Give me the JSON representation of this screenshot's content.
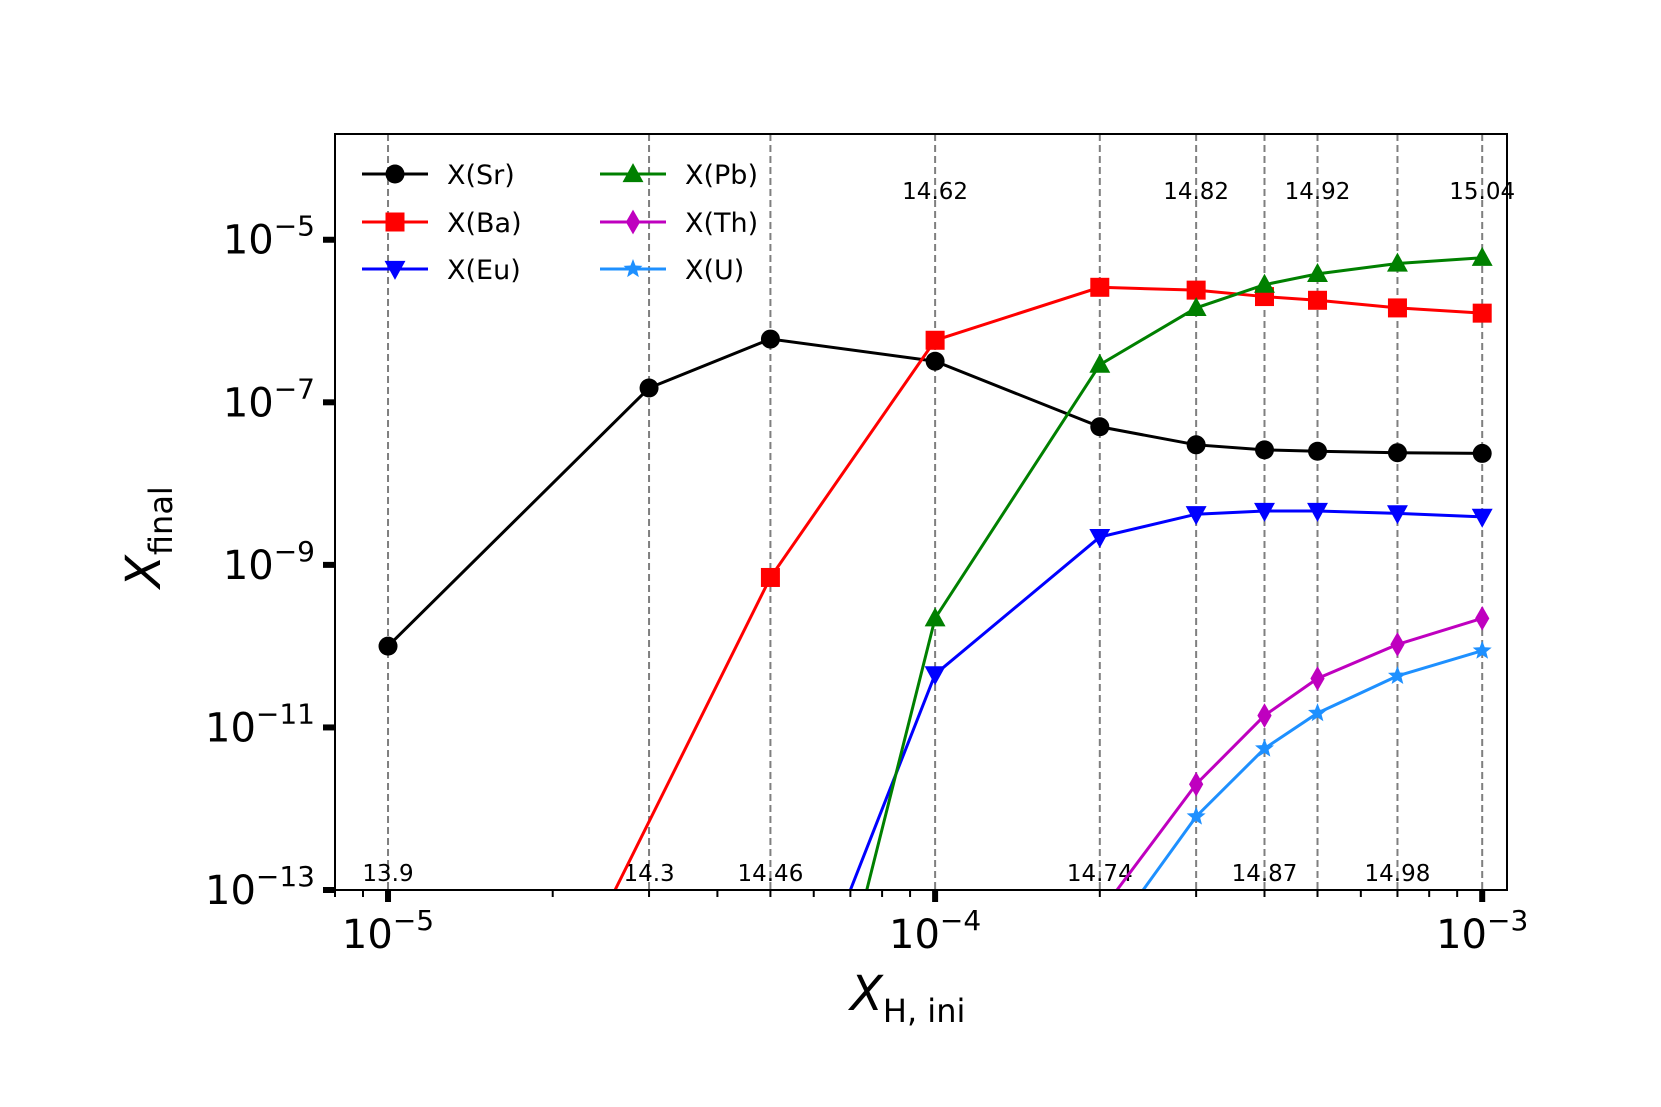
{
  "chart_data": {
    "type": "line",
    "title": "",
    "xscale": "log",
    "yscale": "log",
    "xlim": [
      8e-06,
      0.00111
    ],
    "ylim": [
      1e-13,
      0.0002
    ],
    "xlabel": {
      "main": "X",
      "sub": "H, ini"
    },
    "ylabel": {
      "main": "X",
      "sub": "final"
    },
    "x": [
      1e-05,
      3e-05,
      5e-05,
      0.0001,
      0.0002,
      0.0003,
      0.0004,
      0.0005,
      0.0007,
      0.001
    ],
    "x_ticks": [
      {
        "value": 1e-05,
        "base": "10",
        "exp": "−5"
      },
      {
        "value": 0.0001,
        "base": "10",
        "exp": "−4"
      },
      {
        "value": 0.001,
        "base": "10",
        "exp": "−3"
      }
    ],
    "y_ticks": [
      {
        "value": 1e-05,
        "base": "10",
        "exp": "−5"
      },
      {
        "value": 1e-07,
        "base": "10",
        "exp": "−7"
      },
      {
        "value": 1e-09,
        "base": "10",
        "exp": "−9"
      },
      {
        "value": 1e-11,
        "base": "10",
        "exp": "−11"
      },
      {
        "value": 1e-13,
        "base": "10",
        "exp": "−13"
      }
    ],
    "vlines": [
      1e-05,
      3e-05,
      5e-05,
      0.0001,
      0.0002,
      0.0003,
      0.0004,
      0.0005,
      0.0007,
      0.001
    ],
    "annotations": [
      {
        "x": 1e-05,
        "text": "13.9",
        "row": "bottom"
      },
      {
        "x": 3e-05,
        "text": "14.3",
        "row": "bottom"
      },
      {
        "x": 5e-05,
        "text": "14.46",
        "row": "bottom"
      },
      {
        "x": 0.0001,
        "text": "14.62",
        "row": "top"
      },
      {
        "x": 0.0002,
        "text": "14.74",
        "row": "bottom"
      },
      {
        "x": 0.0003,
        "text": "14.82",
        "row": "top"
      },
      {
        "x": 0.0004,
        "text": "14.87",
        "row": "bottom"
      },
      {
        "x": 0.0005,
        "text": "14.92",
        "row": "top"
      },
      {
        "x": 0.0007,
        "text": "14.98",
        "row": "bottom"
      },
      {
        "x": 0.001,
        "text": "15.04",
        "row": "top"
      }
    ],
    "series": [
      {
        "name": "X(Sr)",
        "color": "#000000",
        "marker": "circle",
        "x": [
          1e-05,
          3e-05,
          5e-05,
          0.0001,
          0.0002,
          0.0003,
          0.0004,
          0.0005,
          0.0007,
          0.001
        ],
        "values": [
          1e-10,
          1.5e-07,
          6e-07,
          3.2e-07,
          5e-08,
          3e-08,
          2.6e-08,
          2.5e-08,
          2.4e-08,
          2.35e-08
        ]
      },
      {
        "name": "X(Ba)",
        "color": "#ff0000",
        "marker": "square",
        "x": [
          2.6e-05,
          5e-05,
          0.0001,
          0.0002,
          0.0003,
          0.0004,
          0.0005,
          0.0007,
          0.001
        ],
        "values": [
          1e-13,
          7e-10,
          5.8e-07,
          2.6e-06,
          2.4e-06,
          2e-06,
          1.8e-06,
          1.45e-06,
          1.25e-06
        ]
      },
      {
        "name": "X(Eu)",
        "color": "#0000ff",
        "marker": "triangle-down",
        "x": [
          7e-05,
          0.0001,
          0.0002,
          0.0003,
          0.0004,
          0.0005,
          0.0007,
          0.001
        ],
        "values": [
          1e-13,
          4.5e-11,
          2.2e-09,
          4.2e-09,
          4.6e-09,
          4.6e-09,
          4.3e-09,
          3.9e-09
        ]
      },
      {
        "name": "X(Pb)",
        "color": "#008000",
        "marker": "triangle-up",
        "x": [
          7.5e-05,
          0.0001,
          0.0002,
          0.0003,
          0.0004,
          0.0005,
          0.0007,
          0.001
        ],
        "values": [
          1e-13,
          2.2e-10,
          2.9e-07,
          1.45e-06,
          2.8e-06,
          3.8e-06,
          5.1e-06,
          6e-06
        ]
      },
      {
        "name": "X(Th)",
        "color": "#bf00bf",
        "marker": "diamond",
        "x": [
          0.000215,
          0.0003,
          0.0004,
          0.0005,
          0.0007,
          0.001
        ],
        "values": [
          1e-13,
          2e-12,
          1.4e-11,
          4e-11,
          1.05e-10,
          2.2e-10
        ]
      },
      {
        "name": "X(U)",
        "color": "#1e90ff",
        "marker": "star",
        "x": [
          0.00024,
          0.0003,
          0.0004,
          0.0005,
          0.0007,
          0.001
        ],
        "values": [
          1e-13,
          8e-13,
          5.5e-12,
          1.5e-11,
          4.3e-11,
          8.8e-11
        ]
      }
    ],
    "legend": {
      "position": "top-left",
      "columns": 2
    }
  }
}
